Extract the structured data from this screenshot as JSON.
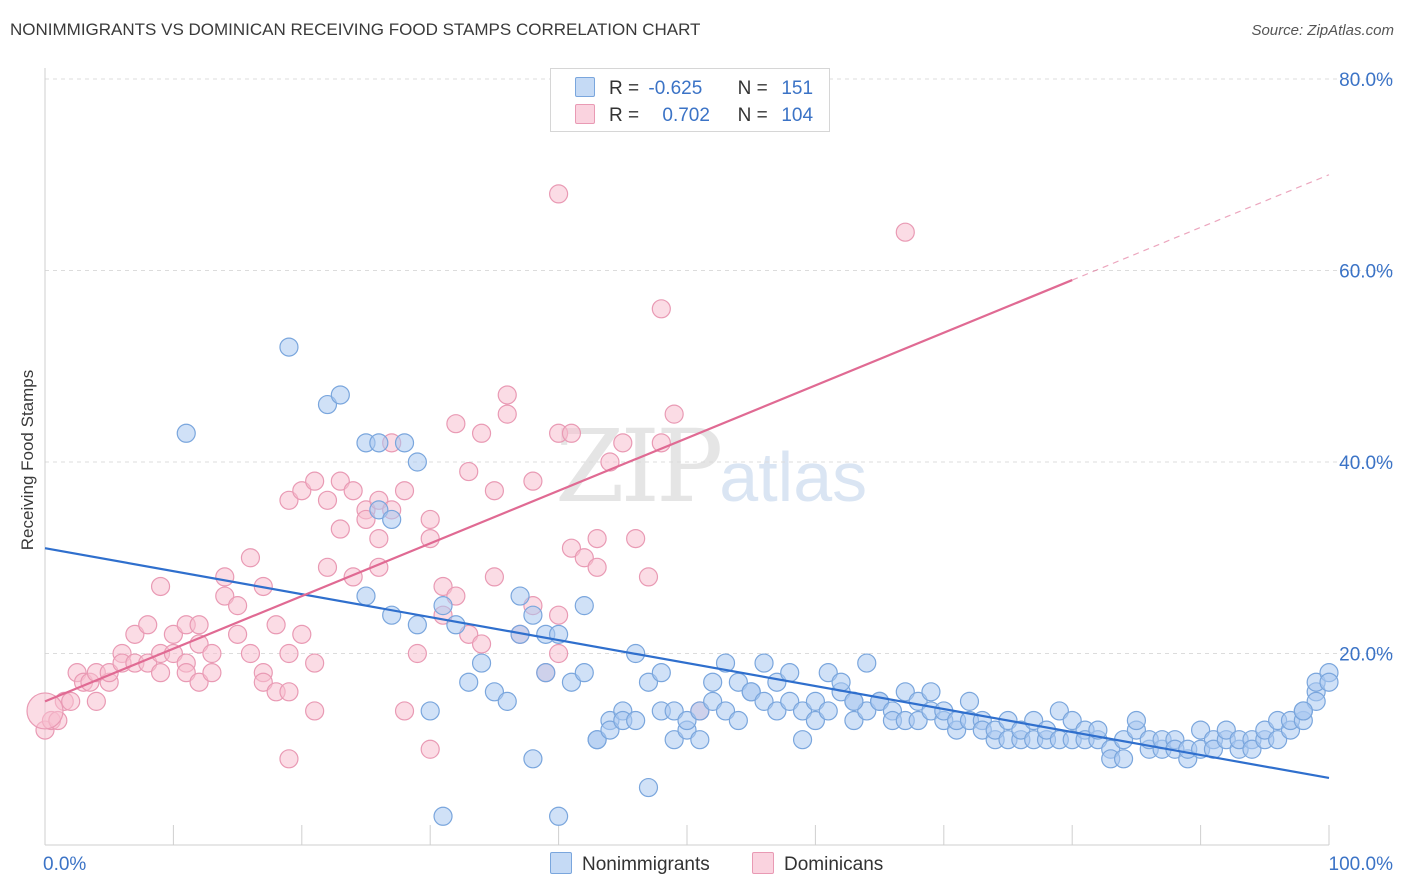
{
  "header": {
    "title": "NONIMMIGRANTS VS DOMINICAN RECEIVING FOOD STAMPS CORRELATION CHART",
    "source": "Source: ZipAtlas.com"
  },
  "watermark": {
    "zip": "ZIP",
    "atlas": "atlas"
  },
  "legend_top": {
    "rows": [
      {
        "r_label": "R =",
        "r_value": "-0.625",
        "n_label": "N =",
        "n_value": "151"
      },
      {
        "r_label": "R =",
        "r_value": "0.702",
        "n_label": "N =",
        "n_value": "104"
      }
    ]
  },
  "legend_bottom": {
    "items": [
      "Nonimmigrants",
      "Dominicans"
    ]
  },
  "colors": {
    "blue_fill": "#a9c8f0",
    "blue_stroke": "#7aa6dd",
    "blue_line": "#2f6fcd",
    "pink_fill": "#f7bfd0",
    "pink_stroke": "#e99ab4",
    "pink_line": "#e06a93",
    "axis_text": "#3b73c6",
    "grid": "#dcdcdc"
  },
  "chart_data": {
    "type": "scatter",
    "title": "NONIMMIGRANTS VS DOMINICAN RECEIVING FOOD STAMPS CORRELATION CHART",
    "xlabel": "",
    "ylabel": "Receiving Food Stamps",
    "xlim": [
      0,
      100
    ],
    "ylim": [
      0,
      80
    ],
    "x_tick_labels": [
      "0.0%",
      "100.0%"
    ],
    "y_tick_labels": [
      "20.0%",
      "40.0%",
      "60.0%",
      "80.0%"
    ],
    "y_ticks": [
      20,
      40,
      60,
      80
    ],
    "series": [
      {
        "name": "Nonimmigrants",
        "r": -0.625,
        "n": 151,
        "trend": {
          "x": [
            0,
            100
          ],
          "y": [
            31,
            7
          ]
        },
        "points": [
          [
            11,
            43
          ],
          [
            19,
            52
          ],
          [
            22,
            46
          ],
          [
            23,
            47
          ],
          [
            26,
            35
          ],
          [
            25,
            42
          ],
          [
            26,
            42
          ],
          [
            27,
            34
          ],
          [
            28,
            42
          ],
          [
            29,
            40
          ],
          [
            25,
            26
          ],
          [
            27,
            24
          ],
          [
            29,
            23
          ],
          [
            30,
            14
          ],
          [
            31,
            3
          ],
          [
            31,
            25
          ],
          [
            32,
            23
          ],
          [
            33,
            17
          ],
          [
            34,
            19
          ],
          [
            35,
            16
          ],
          [
            36,
            15
          ],
          [
            37,
            22
          ],
          [
            37,
            26
          ],
          [
            38,
            24
          ],
          [
            38,
            9
          ],
          [
            39,
            22
          ],
          [
            39,
            18
          ],
          [
            40,
            22
          ],
          [
            40,
            3
          ],
          [
            41,
            17
          ],
          [
            42,
            18
          ],
          [
            42,
            25
          ],
          [
            43,
            11
          ],
          [
            43,
            11
          ],
          [
            44,
            13
          ],
          [
            44,
            12
          ],
          [
            45,
            14
          ],
          [
            45,
            13
          ],
          [
            46,
            20
          ],
          [
            46,
            13
          ],
          [
            47,
            6
          ],
          [
            47,
            17
          ],
          [
            48,
            18
          ],
          [
            48,
            14
          ],
          [
            49,
            11
          ],
          [
            49,
            14
          ],
          [
            50,
            12
          ],
          [
            50,
            13
          ],
          [
            51,
            14
          ],
          [
            51,
            11
          ],
          [
            52,
            15
          ],
          [
            52,
            17
          ],
          [
            53,
            19
          ],
          [
            53,
            14
          ],
          [
            54,
            13
          ],
          [
            54,
            17
          ],
          [
            55,
            16
          ],
          [
            55,
            16
          ],
          [
            56,
            19
          ],
          [
            56,
            15
          ],
          [
            57,
            14
          ],
          [
            57,
            17
          ],
          [
            58,
            18
          ],
          [
            58,
            15
          ],
          [
            59,
            11
          ],
          [
            59,
            14
          ],
          [
            60,
            13
          ],
          [
            60,
            15
          ],
          [
            61,
            14
          ],
          [
            61,
            18
          ],
          [
            62,
            16
          ],
          [
            62,
            17
          ],
          [
            63,
            15
          ],
          [
            63,
            13
          ],
          [
            64,
            19
          ],
          [
            64,
            14
          ],
          [
            65,
            15
          ],
          [
            65,
            15
          ],
          [
            66,
            14
          ],
          [
            66,
            13
          ],
          [
            67,
            16
          ],
          [
            67,
            13
          ],
          [
            68,
            15
          ],
          [
            68,
            13
          ],
          [
            69,
            16
          ],
          [
            69,
            14
          ],
          [
            70,
            13
          ],
          [
            70,
            14
          ],
          [
            71,
            12
          ],
          [
            71,
            13
          ],
          [
            72,
            15
          ],
          [
            72,
            13
          ],
          [
            73,
            13
          ],
          [
            73,
            12
          ],
          [
            74,
            11
          ],
          [
            74,
            12
          ],
          [
            75,
            13
          ],
          [
            75,
            11
          ],
          [
            76,
            11
          ],
          [
            76,
            12
          ],
          [
            77,
            13
          ],
          [
            77,
            11
          ],
          [
            78,
            11
          ],
          [
            78,
            12
          ],
          [
            79,
            11
          ],
          [
            79,
            14
          ],
          [
            80,
            11
          ],
          [
            80,
            13
          ],
          [
            81,
            12
          ],
          [
            81,
            11
          ],
          [
            82,
            11
          ],
          [
            82,
            12
          ],
          [
            83,
            10
          ],
          [
            83,
            9
          ],
          [
            84,
            9
          ],
          [
            84,
            11
          ],
          [
            85,
            12
          ],
          [
            85,
            13
          ],
          [
            86,
            10
          ],
          [
            86,
            11
          ],
          [
            87,
            10
          ],
          [
            87,
            11
          ],
          [
            88,
            11
          ],
          [
            88,
            10
          ],
          [
            89,
            9
          ],
          [
            89,
            10
          ],
          [
            90,
            12
          ],
          [
            90,
            10
          ],
          [
            91,
            11
          ],
          [
            91,
            10
          ],
          [
            92,
            11
          ],
          [
            92,
            12
          ],
          [
            93,
            10
          ],
          [
            93,
            11
          ],
          [
            94,
            11
          ],
          [
            94,
            10
          ],
          [
            95,
            11
          ],
          [
            95,
            12
          ],
          [
            96,
            13
          ],
          [
            96,
            11
          ],
          [
            97,
            12
          ],
          [
            97,
            13
          ],
          [
            98,
            13
          ],
          [
            98,
            14
          ],
          [
            99,
            16
          ],
          [
            99,
            17
          ],
          [
            100,
            18
          ],
          [
            100,
            17
          ],
          [
            99,
            15
          ],
          [
            98,
            14
          ],
          [
            63,
            15
          ]
        ]
      },
      {
        "name": "Dominicans",
        "r": 0.702,
        "n": 104,
        "trend": {
          "x": [
            0,
            80
          ],
          "y": [
            15,
            59
          ]
        },
        "trend_extension": {
          "x": [
            80,
            100
          ],
          "y": [
            59,
            70
          ]
        },
        "points": [
          [
            0,
            12
          ],
          [
            0.5,
            13
          ],
          [
            1,
            13
          ],
          [
            1.5,
            15
          ],
          [
            2,
            15
          ],
          [
            2.5,
            18
          ],
          [
            3,
            17
          ],
          [
            3.5,
            17
          ],
          [
            4,
            18
          ],
          [
            4,
            15
          ],
          [
            5,
            17
          ],
          [
            5,
            18
          ],
          [
            6,
            20
          ],
          [
            6,
            19
          ],
          [
            7,
            19
          ],
          [
            7,
            22
          ],
          [
            8,
            19
          ],
          [
            8,
            23
          ],
          [
            9,
            18
          ],
          [
            9,
            20
          ],
          [
            9,
            27
          ],
          [
            10,
            22
          ],
          [
            10,
            20
          ],
          [
            11,
            19
          ],
          [
            11,
            23
          ],
          [
            11,
            18
          ],
          [
            12,
            17
          ],
          [
            12,
            23
          ],
          [
            12,
            21
          ],
          [
            13,
            20
          ],
          [
            13,
            18
          ],
          [
            14,
            28
          ],
          [
            14,
            26
          ],
          [
            15,
            25
          ],
          [
            15,
            22
          ],
          [
            16,
            30
          ],
          [
            16,
            20
          ],
          [
            17,
            18
          ],
          [
            17,
            17
          ],
          [
            17,
            27
          ],
          [
            18,
            23
          ],
          [
            18,
            16
          ],
          [
            19,
            20
          ],
          [
            19,
            16
          ],
          [
            19,
            36
          ],
          [
            20,
            37
          ],
          [
            20,
            22
          ],
          [
            21,
            19
          ],
          [
            21,
            38
          ],
          [
            21,
            14
          ],
          [
            22,
            29
          ],
          [
            22,
            36
          ],
          [
            23,
            33
          ],
          [
            23,
            38
          ],
          [
            24,
            28
          ],
          [
            24,
            37
          ],
          [
            25,
            35
          ],
          [
            25,
            34
          ],
          [
            26,
            36
          ],
          [
            26,
            29
          ],
          [
            26,
            32
          ],
          [
            27,
            35
          ],
          [
            27,
            42
          ],
          [
            28,
            37
          ],
          [
            28,
            14
          ],
          [
            29,
            20
          ],
          [
            30,
            34
          ],
          [
            30,
            32
          ],
          [
            31,
            24
          ],
          [
            31,
            27
          ],
          [
            32,
            44
          ],
          [
            32,
            26
          ],
          [
            33,
            22
          ],
          [
            33,
            39
          ],
          [
            34,
            43
          ],
          [
            34,
            21
          ],
          [
            35,
            28
          ],
          [
            35,
            37
          ],
          [
            36,
            45
          ],
          [
            36,
            47
          ],
          [
            37,
            22
          ],
          [
            38,
            38
          ],
          [
            38,
            25
          ],
          [
            39,
            18
          ],
          [
            40,
            20
          ],
          [
            40,
            43
          ],
          [
            40,
            68
          ],
          [
            41,
            43
          ],
          [
            41,
            31
          ],
          [
            42,
            30
          ],
          [
            43,
            29
          ],
          [
            43,
            32
          ],
          [
            44,
            40
          ],
          [
            45,
            42
          ],
          [
            46,
            32
          ],
          [
            47,
            28
          ],
          [
            48,
            56
          ],
          [
            48,
            42
          ],
          [
            49,
            45
          ],
          [
            51,
            14
          ],
          [
            67,
            64
          ],
          [
            40,
            24
          ],
          [
            30,
            10
          ],
          [
            19,
            9
          ]
        ]
      }
    ]
  }
}
